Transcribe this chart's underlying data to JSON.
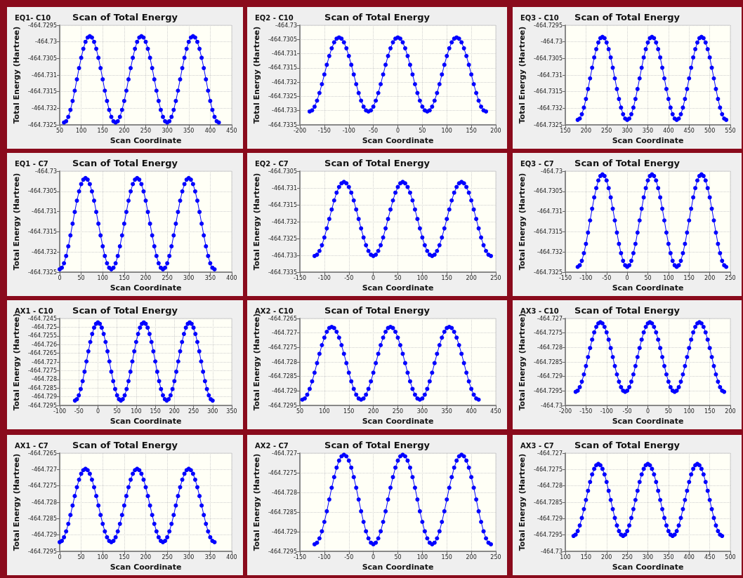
{
  "chart_data": [
    {
      "type": "line",
      "subtitle": "EQ1- C10",
      "title": "Scan of Total Energy",
      "xlabel": "Scan Coordinate",
      "ylabel": "Total Energy (Hartree)",
      "color": "#0000ff",
      "marker": "circle",
      "line_style": "solid",
      "grid": true,
      "xlim": [
        50,
        450
      ],
      "xticks": [
        50,
        100,
        150,
        200,
        250,
        300,
        350,
        400,
        450
      ],
      "ylim": [
        -464.7325,
        -464.7295
      ],
      "yticks": [
        -464.7325,
        -464.732,
        -464.7315,
        -464.731,
        -464.7305,
        -464.73,
        -464.7295
      ],
      "x": [
        60,
        65,
        70,
        75,
        80,
        85,
        90,
        95,
        100,
        105,
        110,
        115,
        120,
        125,
        130,
        135,
        140,
        145,
        150,
        155,
        160,
        165,
        170,
        175,
        180,
        185,
        190,
        195,
        200,
        205,
        210,
        215,
        220,
        225,
        230,
        235,
        240,
        245,
        250,
        255,
        260,
        265,
        270,
        275,
        280,
        285,
        290,
        295,
        300,
        305,
        310,
        315,
        320,
        325,
        330,
        335,
        340,
        345,
        350,
        355,
        360,
        365,
        370,
        375,
        380,
        385,
        390,
        395,
        400,
        405,
        410,
        415,
        420
      ],
      "values": [
        -464.73243,
        -464.73239,
        -464.73226,
        -464.73205,
        -464.73178,
        -464.73147,
        -464.73113,
        -464.73079,
        -464.73048,
        -464.73021,
        -464.73,
        -464.72987,
        -464.72983,
        -464.72987,
        -464.73,
        -464.73021,
        -464.73048,
        -464.73079,
        -464.73113,
        -464.73147,
        -464.73178,
        -464.73205,
        -464.73226,
        -464.73239,
        -464.73243,
        -464.73239,
        -464.73226,
        -464.73205,
        -464.73178,
        -464.73147,
        -464.73113,
        -464.73079,
        -464.73048,
        -464.73021,
        -464.73,
        -464.72987,
        -464.72983,
        -464.72987,
        -464.73,
        -464.73021,
        -464.73048,
        -464.73079,
        -464.73113,
        -464.73147,
        -464.73178,
        -464.73205,
        -464.73226,
        -464.73239,
        -464.73243,
        -464.73239,
        -464.73226,
        -464.73205,
        -464.73178,
        -464.73147,
        -464.73113,
        -464.73079,
        -464.73048,
        -464.73021,
        -464.73,
        -464.72987,
        -464.72983,
        -464.72987,
        -464.73,
        -464.73021,
        -464.73048,
        -464.73079,
        -464.73113,
        -464.73147,
        -464.73178,
        -464.73205,
        -464.73226,
        -464.73239,
        -464.73243
      ]
    },
    {
      "type": "line",
      "subtitle": "EQ2 - C10",
      "title": "Scan of Total Energy",
      "xlabel": "Scan Coordinate",
      "ylabel": "Total Energy (Hartree)",
      "color": "#0000ff",
      "marker": "circle",
      "line_style": "solid",
      "grid": true,
      "xlim": [
        -200,
        200
      ],
      "xticks": [
        -200,
        -150,
        -100,
        -50,
        0,
        50,
        100,
        150,
        200
      ],
      "ylim": [
        -464.7335,
        -464.73
      ],
      "yticks": [
        -464.7335,
        -464.733,
        -464.7325,
        -464.732,
        -464.7315,
        -464.731,
        -464.7305,
        -464.73
      ],
      "x": [
        -180,
        -175,
        -170,
        -165,
        -160,
        -155,
        -150,
        -145,
        -140,
        -135,
        -130,
        -125,
        -120,
        -115,
        -110,
        -105,
        -100,
        -95,
        -90,
        -85,
        -80,
        -75,
        -70,
        -65,
        -60,
        -55,
        -50,
        -45,
        -40,
        -35,
        -30,
        -25,
        -20,
        -15,
        -10,
        -5,
        0,
        5,
        10,
        15,
        20,
        25,
        30,
        35,
        40,
        45,
        50,
        55,
        60,
        65,
        70,
        75,
        80,
        85,
        90,
        95,
        100,
        105,
        110,
        115,
        120,
        125,
        130,
        135,
        140,
        145,
        150,
        155,
        160,
        165,
        170,
        175,
        180
      ],
      "values": [
        -464.73303,
        -464.73299,
        -464.73286,
        -464.73265,
        -464.73238,
        -464.73207,
        -464.73173,
        -464.73139,
        -464.73108,
        -464.73081,
        -464.7306,
        -464.73047,
        -464.73043,
        -464.73047,
        -464.7306,
        -464.73081,
        -464.73108,
        -464.73139,
        -464.73173,
        -464.73207,
        -464.73238,
        -464.73265,
        -464.73286,
        -464.73299,
        -464.73303,
        -464.73299,
        -464.73286,
        -464.73265,
        -464.73238,
        -464.73207,
        -464.73173,
        -464.73139,
        -464.73108,
        -464.73081,
        -464.7306,
        -464.73047,
        -464.73043,
        -464.73047,
        -464.7306,
        -464.73081,
        -464.73108,
        -464.73139,
        -464.73173,
        -464.73207,
        -464.73238,
        -464.73265,
        -464.73286,
        -464.73299,
        -464.73303,
        -464.73299,
        -464.73286,
        -464.73265,
        -464.73238,
        -464.73207,
        -464.73173,
        -464.73139,
        -464.73108,
        -464.73081,
        -464.7306,
        -464.73047,
        -464.73043,
        -464.73047,
        -464.7306,
        -464.73081,
        -464.73108,
        -464.73139,
        -464.73173,
        -464.73207,
        -464.73238,
        -464.73265,
        -464.73286,
        -464.73299,
        -464.73303
      ]
    },
    {
      "type": "line",
      "subtitle": "EQ3 - C10",
      "title": "Scan of Total Energy",
      "xlabel": "Scan Coordinate",
      "ylabel": "Total Energy (Hartree)",
      "color": "#0000ff",
      "marker": "circle",
      "line_style": "solid",
      "grid": true,
      "xlim": [
        150,
        550
      ],
      "xticks": [
        150,
        200,
        250,
        300,
        350,
        400,
        450,
        500,
        550
      ],
      "ylim": [
        -464.7325,
        -464.7295
      ],
      "yticks": [
        -464.7325,
        -464.732,
        -464.7315,
        -464.731,
        -464.7305,
        -464.73,
        -464.7295
      ],
      "x": [
        180,
        185,
        190,
        195,
        200,
        205,
        210,
        215,
        220,
        225,
        230,
        235,
        240,
        245,
        250,
        255,
        260,
        265,
        270,
        275,
        280,
        285,
        290,
        295,
        300,
        305,
        310,
        315,
        320,
        325,
        330,
        335,
        340,
        345,
        350,
        355,
        360,
        365,
        370,
        375,
        380,
        385,
        390,
        395,
        400,
        405,
        410,
        415,
        420,
        425,
        430,
        435,
        440,
        445,
        450,
        455,
        460,
        465,
        470,
        475,
        480,
        485,
        490,
        495,
        500,
        505,
        510,
        515,
        520,
        525,
        530,
        535,
        540
      ],
      "values": [
        -464.73235,
        -464.73231,
        -464.73218,
        -464.73198,
        -464.73172,
        -464.73142,
        -464.7311,
        -464.73078,
        -464.73047,
        -464.73022,
        -464.73002,
        -464.72989,
        -464.72985,
        -464.72989,
        -464.73002,
        -464.73022,
        -464.73047,
        -464.73078,
        -464.7311,
        -464.73142,
        -464.73172,
        -464.73198,
        -464.73218,
        -464.73231,
        -464.73235,
        -464.73231,
        -464.73218,
        -464.73198,
        -464.73172,
        -464.73142,
        -464.7311,
        -464.73078,
        -464.73047,
        -464.73022,
        -464.73002,
        -464.72989,
        -464.72985,
        -464.72989,
        -464.73002,
        -464.73022,
        -464.73047,
        -464.73078,
        -464.7311,
        -464.73142,
        -464.73172,
        -464.73198,
        -464.73218,
        -464.73231,
        -464.73235,
        -464.73231,
        -464.73218,
        -464.73198,
        -464.73172,
        -464.73142,
        -464.7311,
        -464.73078,
        -464.73047,
        -464.73022,
        -464.73002,
        -464.72989,
        -464.72985,
        -464.72989,
        -464.73002,
        -464.73022,
        -464.73047,
        -464.73078,
        -464.7311,
        -464.73142,
        -464.73172,
        -464.73198,
        -464.73218,
        -464.73231,
        -464.73235
      ]
    },
    {
      "type": "line",
      "subtitle": "EQ1 - C7",
      "title": "Scan of Total Energy",
      "xlabel": "Scan Coordinate",
      "ylabel": "Total Energy (Hartree)",
      "color": "#0000ff",
      "marker": "circle",
      "line_style": "solid",
      "grid": true,
      "xlim": [
        0,
        400
      ],
      "xticks": [
        0,
        50,
        100,
        150,
        200,
        250,
        300,
        350,
        400
      ],
      "ylim": [
        -464.7325,
        -464.73
      ],
      "yticks": [
        -464.7325,
        -464.732,
        -464.7315,
        -464.731,
        -464.7305,
        -464.73
      ],
      "x": [
        0,
        5,
        10,
        15,
        20,
        25,
        30,
        35,
        40,
        45,
        50,
        55,
        60,
        65,
        70,
        75,
        80,
        85,
        90,
        95,
        100,
        105,
        110,
        115,
        120,
        125,
        130,
        135,
        140,
        145,
        150,
        155,
        160,
        165,
        170,
        175,
        180,
        185,
        190,
        195,
        200,
        205,
        210,
        215,
        220,
        225,
        230,
        235,
        240,
        245,
        250,
        255,
        260,
        265,
        270,
        275,
        280,
        285,
        290,
        295,
        300,
        305,
        310,
        315,
        320,
        325,
        330,
        335,
        340,
        345,
        350,
        355,
        360
      ],
      "values": [
        -464.73243,
        -464.73239,
        -464.73228,
        -464.7321,
        -464.73186,
        -464.73159,
        -464.7313,
        -464.73101,
        -464.73073,
        -464.7305,
        -464.73032,
        -464.73021,
        -464.73017,
        -464.73021,
        -464.73032,
        -464.7305,
        -464.73073,
        -464.73101,
        -464.7313,
        -464.73159,
        -464.73186,
        -464.7321,
        -464.73228,
        -464.73239,
        -464.73243,
        -464.73239,
        -464.73228,
        -464.7321,
        -464.73186,
        -464.73159,
        -464.7313,
        -464.73101,
        -464.73073,
        -464.7305,
        -464.73032,
        -464.73021,
        -464.73017,
        -464.73021,
        -464.73032,
        -464.7305,
        -464.73073,
        -464.73101,
        -464.7313,
        -464.73159,
        -464.73186,
        -464.7321,
        -464.73228,
        -464.73239,
        -464.73243,
        -464.73239,
        -464.73228,
        -464.7321,
        -464.73186,
        -464.73159,
        -464.7313,
        -464.73101,
        -464.73073,
        -464.7305,
        -464.73032,
        -464.73021,
        -464.73017,
        -464.73021,
        -464.73032,
        -464.7305,
        -464.73073,
        -464.73101,
        -464.7313,
        -464.73159,
        -464.73186,
        -464.7321,
        -464.73228,
        -464.73239,
        -464.73243
      ]
    },
    {
      "type": "line",
      "subtitle": "EQ2 - C7",
      "title": "Scan of Total Energy",
      "xlabel": "Scan Coordinate",
      "ylabel": "Total Energy (Hartree)",
      "color": "#0000ff",
      "marker": "circle",
      "line_style": "solid",
      "grid": true,
      "xlim": [
        -150,
        250
      ],
      "xticks": [
        -150,
        -100,
        -50,
        0,
        50,
        100,
        150,
        200,
        250
      ],
      "ylim": [
        -464.7335,
        -464.7305
      ],
      "yticks": [
        -464.7335,
        -464.733,
        -464.7325,
        -464.732,
        -464.7315,
        -464.731,
        -464.7305
      ],
      "x": [
        -120,
        -115,
        -110,
        -105,
        -100,
        -95,
        -90,
        -85,
        -80,
        -75,
        -70,
        -65,
        -60,
        -55,
        -50,
        -45,
        -40,
        -35,
        -30,
        -25,
        -20,
        -15,
        -10,
        -5,
        0,
        5,
        10,
        15,
        20,
        25,
        30,
        35,
        40,
        45,
        50,
        55,
        60,
        65,
        70,
        75,
        80,
        85,
        90,
        95,
        100,
        105,
        110,
        115,
        120,
        125,
        130,
        135,
        140,
        145,
        150,
        155,
        160,
        165,
        170,
        175,
        180,
        185,
        190,
        195,
        200,
        205,
        210,
        215,
        220,
        225,
        230,
        235,
        240
      ],
      "values": [
        -464.73302,
        -464.73298,
        -464.73287,
        -464.7327,
        -464.73247,
        -464.7322,
        -464.73192,
        -464.73164,
        -464.73137,
        -464.73114,
        -464.73097,
        -464.73086,
        -464.73082,
        -464.73086,
        -464.73097,
        -464.73114,
        -464.73137,
        -464.73164,
        -464.73192,
        -464.7322,
        -464.73247,
        -464.7327,
        -464.73287,
        -464.73298,
        -464.73302,
        -464.73298,
        -464.73287,
        -464.7327,
        -464.73247,
        -464.7322,
        -464.73192,
        -464.73164,
        -464.73137,
        -464.73114,
        -464.73097,
        -464.73086,
        -464.73082,
        -464.73086,
        -464.73097,
        -464.73114,
        -464.73137,
        -464.73164,
        -464.73192,
        -464.7322,
        -464.73247,
        -464.7327,
        -464.73287,
        -464.73298,
        -464.73302,
        -464.73298,
        -464.73287,
        -464.7327,
        -464.73247,
        -464.7322,
        -464.73192,
        -464.73164,
        -464.73137,
        -464.73114,
        -464.73097,
        -464.73086,
        -464.73082,
        -464.73086,
        -464.73097,
        -464.73114,
        -464.73137,
        -464.73164,
        -464.73192,
        -464.7322,
        -464.73247,
        -464.7327,
        -464.73287,
        -464.73298,
        -464.73302
      ]
    },
    {
      "type": "line",
      "subtitle": "EQ3 - C7",
      "title": "Scan of Total Energy",
      "xlabel": "Scan Coordinate",
      "ylabel": "Total Energy (Hartree)",
      "color": "#0000ff",
      "marker": "circle",
      "line_style": "solid",
      "grid": true,
      "xlim": [
        -150,
        250
      ],
      "xticks": [
        -150,
        -100,
        -50,
        0,
        50,
        100,
        150,
        200,
        250
      ],
      "ylim": [
        -464.7325,
        -464.73
      ],
      "yticks": [
        -464.7325,
        -464.732,
        -464.7315,
        -464.731,
        -464.7305,
        -464.73
      ],
      "x": [
        -120,
        -115,
        -110,
        -105,
        -100,
        -95,
        -90,
        -85,
        -80,
        -75,
        -70,
        -65,
        -60,
        -55,
        -50,
        -45,
        -40,
        -35,
        -30,
        -25,
        -20,
        -15,
        -10,
        -5,
        0,
        5,
        10,
        15,
        20,
        25,
        30,
        35,
        40,
        45,
        50,
        55,
        60,
        65,
        70,
        75,
        80,
        85,
        90,
        95,
        100,
        105,
        110,
        115,
        120,
        125,
        130,
        135,
        140,
        145,
        150,
        155,
        160,
        165,
        170,
        175,
        180,
        185,
        190,
        195,
        200,
        205,
        210,
        215,
        220,
        225,
        230,
        235,
        240
      ],
      "values": [
        -464.73237,
        -464.73233,
        -464.73222,
        -464.73203,
        -464.7318,
        -464.73152,
        -464.73122,
        -464.73093,
        -464.73065,
        -464.73042,
        -464.73023,
        -464.73012,
        -464.73008,
        -464.73012,
        -464.73023,
        -464.73042,
        -464.73065,
        -464.73093,
        -464.73122,
        -464.73152,
        -464.7318,
        -464.73203,
        -464.73222,
        -464.73233,
        -464.73237,
        -464.73233,
        -464.73222,
        -464.73203,
        -464.7318,
        -464.73152,
        -464.73122,
        -464.73093,
        -464.73065,
        -464.73042,
        -464.73023,
        -464.73012,
        -464.73008,
        -464.73012,
        -464.73023,
        -464.73042,
        -464.73065,
        -464.73093,
        -464.73122,
        -464.73152,
        -464.7318,
        -464.73203,
        -464.73222,
        -464.73233,
        -464.73237,
        -464.73233,
        -464.73222,
        -464.73203,
        -464.7318,
        -464.73152,
        -464.73122,
        -464.73093,
        -464.73065,
        -464.73042,
        -464.73023,
        -464.73012,
        -464.73008,
        -464.73012,
        -464.73023,
        -464.73042,
        -464.73065,
        -464.73093,
        -464.73122,
        -464.73152,
        -464.7318,
        -464.73203,
        -464.73222,
        -464.73233,
        -464.73237
      ]
    },
    {
      "type": "line",
      "subtitle": "AX1 - C10",
      "title": "Scan of Total Energy",
      "xlabel": "Scan Coordinate",
      "ylabel": "Total Energy (Hartree)",
      "color": "#0000ff",
      "marker": "circle",
      "line_style": "solid",
      "grid": true,
      "xlim": [
        -100,
        350
      ],
      "xticks": [
        -100,
        -50,
        0,
        50,
        100,
        150,
        200,
        250,
        300,
        350
      ],
      "ylim": [
        -464.7295,
        -464.7245
      ],
      "yticks": [
        -464.7295,
        -464.729,
        -464.7285,
        -464.728,
        -464.7275,
        -464.727,
        -464.7265,
        -464.726,
        -464.7255,
        -464.725,
        -464.7245
      ],
      "x": [
        -60,
        -55,
        -50,
        -45,
        -40,
        -35,
        -30,
        -25,
        -20,
        -15,
        -10,
        -5,
        0,
        5,
        10,
        15,
        20,
        25,
        30,
        35,
        40,
        45,
        50,
        55,
        60,
        65,
        70,
        75,
        80,
        85,
        90,
        95,
        100,
        105,
        110,
        115,
        120,
        125,
        130,
        135,
        140,
        145,
        150,
        155,
        160,
        165,
        170,
        175,
        180,
        185,
        190,
        195,
        200,
        205,
        210,
        215,
        220,
        225,
        230,
        235,
        240,
        245,
        250,
        255,
        260,
        265,
        270,
        275,
        280,
        285,
        290,
        295,
        300
      ],
      "values": [
        -464.72922,
        -464.72914,
        -464.72892,
        -464.72856,
        -464.7281,
        -464.72756,
        -464.72697,
        -464.72639,
        -464.72585,
        -464.72539,
        -464.72503,
        -464.72481,
        -464.72473,
        -464.72481,
        -464.72503,
        -464.72539,
        -464.72585,
        -464.72639,
        -464.72697,
        -464.72756,
        -464.7281,
        -464.72856,
        -464.72892,
        -464.72914,
        -464.72922,
        -464.72914,
        -464.72892,
        -464.72856,
        -464.7281,
        -464.72756,
        -464.72697,
        -464.72639,
        -464.72585,
        -464.72539,
        -464.72503,
        -464.72481,
        -464.72473,
        -464.72481,
        -464.72503,
        -464.72539,
        -464.72585,
        -464.72639,
        -464.72697,
        -464.72756,
        -464.7281,
        -464.72856,
        -464.72892,
        -464.72914,
        -464.72922,
        -464.72914,
        -464.72892,
        -464.72856,
        -464.7281,
        -464.72756,
        -464.72697,
        -464.72639,
        -464.72585,
        -464.72539,
        -464.72503,
        -464.72481,
        -464.72473,
        -464.72481,
        -464.72503,
        -464.72539,
        -464.72585,
        -464.72639,
        -464.72697,
        -464.72756,
        -464.7281,
        -464.72856,
        -464.72892,
        -464.72914,
        -464.72922
      ]
    },
    {
      "type": "line",
      "subtitle": "AX2 - C10",
      "title": "Scan of Total Energy",
      "xlabel": "Scan Coordinate",
      "ylabel": "Total Energy (Hartree)",
      "color": "#0000ff",
      "marker": "circle",
      "line_style": "solid",
      "grid": true,
      "xlim": [
        50,
        450
      ],
      "xticks": [
        50,
        100,
        150,
        200,
        250,
        300,
        350,
        400,
        450
      ],
      "ylim": [
        -464.7295,
        -464.7265
      ],
      "yticks": [
        -464.7295,
        -464.729,
        -464.7285,
        -464.728,
        -464.7275,
        -464.727,
        -464.7265
      ],
      "x": [
        55,
        60,
        65,
        70,
        75,
        80,
        85,
        90,
        95,
        100,
        105,
        110,
        115,
        120,
        125,
        130,
        135,
        140,
        145,
        150,
        155,
        160,
        165,
        170,
        175,
        180,
        185,
        190,
        195,
        200,
        205,
        210,
        215,
        220,
        225,
        230,
        235,
        240,
        245,
        250,
        255,
        260,
        265,
        270,
        275,
        280,
        285,
        290,
        295,
        300,
        305,
        310,
        315,
        320,
        325,
        330,
        335,
        340,
        345,
        350,
        355,
        360,
        365,
        370,
        375,
        380,
        385,
        390,
        395,
        400,
        405,
        410,
        415
      ],
      "values": [
        -464.7293,
        -464.72926,
        -464.72913,
        -464.72893,
        -464.72867,
        -464.72837,
        -464.72804,
        -464.72772,
        -464.72742,
        -464.72716,
        -464.72696,
        -464.72683,
        -464.72679,
        -464.72683,
        -464.72696,
        -464.72716,
        -464.72742,
        -464.72772,
        -464.72804,
        -464.72837,
        -464.72867,
        -464.72893,
        -464.72913,
        -464.72926,
        -464.7293,
        -464.72926,
        -464.72913,
        -464.72893,
        -464.72867,
        -464.72837,
        -464.72804,
        -464.72772,
        -464.72742,
        -464.72716,
        -464.72696,
        -464.72683,
        -464.72679,
        -464.72683,
        -464.72696,
        -464.72716,
        -464.72742,
        -464.72772,
        -464.72804,
        -464.72837,
        -464.72867,
        -464.72893,
        -464.72913,
        -464.72926,
        -464.7293,
        -464.72926,
        -464.72913,
        -464.72893,
        -464.72867,
        -464.72837,
        -464.72804,
        -464.72772,
        -464.72742,
        -464.72716,
        -464.72696,
        -464.72683,
        -464.72679,
        -464.72683,
        -464.72696,
        -464.72716,
        -464.72742,
        -464.72772,
        -464.72804,
        -464.72837,
        -464.72867,
        -464.72893,
        -464.72913,
        -464.72926,
        -464.7293
      ]
    },
    {
      "type": "line",
      "subtitle": "AX3 - C10",
      "title": "Scan of Total Energy",
      "xlabel": "Scan Coordinate",
      "ylabel": "Total Energy (Hartree)",
      "color": "#0000ff",
      "marker": "circle",
      "line_style": "solid",
      "grid": true,
      "xlim": [
        -200,
        200
      ],
      "xticks": [
        -200,
        -150,
        -100,
        -50,
        0,
        50,
        100,
        150,
        200
      ],
      "ylim": [
        -464.73,
        -464.727
      ],
      "yticks": [
        -464.73,
        -464.7295,
        -464.729,
        -464.7285,
        -464.728,
        -464.7275,
        -464.727
      ],
      "x": [
        -175,
        -170,
        -165,
        -160,
        -155,
        -150,
        -145,
        -140,
        -135,
        -130,
        -125,
        -120,
        -115,
        -110,
        -105,
        -100,
        -95,
        -90,
        -85,
        -80,
        -75,
        -70,
        -65,
        -60,
        -55,
        -50,
        -45,
        -40,
        -35,
        -30,
        -25,
        -20,
        -15,
        -10,
        -5,
        0,
        5,
        10,
        15,
        20,
        25,
        30,
        35,
        40,
        45,
        50,
        55,
        60,
        65,
        70,
        75,
        80,
        85,
        90,
        95,
        100,
        105,
        110,
        115,
        120,
        125,
        130,
        135,
        140,
        145,
        150,
        155,
        160,
        165,
        170,
        175,
        180,
        185
      ],
      "values": [
        -464.72953,
        -464.72949,
        -464.72937,
        -464.72918,
        -464.72893,
        -464.72864,
        -464.72833,
        -464.72802,
        -464.72773,
        -464.72748,
        -464.72729,
        -464.72717,
        -464.72713,
        -464.72717,
        -464.72729,
        -464.72748,
        -464.72773,
        -464.72802,
        -464.72833,
        -464.72864,
        -464.72893,
        -464.72918,
        -464.72937,
        -464.72949,
        -464.72953,
        -464.72949,
        -464.72937,
        -464.72918,
        -464.72893,
        -464.72864,
        -464.72833,
        -464.72802,
        -464.72773,
        -464.72748,
        -464.72729,
        -464.72717,
        -464.72713,
        -464.72717,
        -464.72729,
        -464.72748,
        -464.72773,
        -464.72802,
        -464.72833,
        -464.72864,
        -464.72893,
        -464.72918,
        -464.72937,
        -464.72949,
        -464.72953,
        -464.72949,
        -464.72937,
        -464.72918,
        -464.72893,
        -464.72864,
        -464.72833,
        -464.72802,
        -464.72773,
        -464.72748,
        -464.72729,
        -464.72717,
        -464.72713,
        -464.72717,
        -464.72729,
        -464.72748,
        -464.72773,
        -464.72802,
        -464.72833,
        -464.72864,
        -464.72893,
        -464.72918,
        -464.72937,
        -464.72949,
        -464.72953
      ]
    },
    {
      "type": "line",
      "subtitle": "AX1 - C7",
      "title": "Scan of Total Energy",
      "xlabel": "Scan Coordinate",
      "ylabel": "Total Energy (Hartree)",
      "color": "#0000ff",
      "marker": "circle",
      "line_style": "solid",
      "grid": true,
      "xlim": [
        0,
        400
      ],
      "xticks": [
        0,
        50,
        100,
        150,
        200,
        250,
        300,
        350,
        400
      ],
      "ylim": [
        -464.7295,
        -464.7265
      ],
      "yticks": [
        -464.7295,
        -464.729,
        -464.7285,
        -464.728,
        -464.7275,
        -464.727,
        -464.7265
      ],
      "x": [
        0,
        5,
        10,
        15,
        20,
        25,
        30,
        35,
        40,
        45,
        50,
        55,
        60,
        65,
        70,
        75,
        80,
        85,
        90,
        95,
        100,
        105,
        110,
        115,
        120,
        125,
        130,
        135,
        140,
        145,
        150,
        155,
        160,
        165,
        170,
        175,
        180,
        185,
        190,
        195,
        200,
        205,
        210,
        215,
        220,
        225,
        230,
        235,
        240,
        245,
        250,
        255,
        260,
        265,
        270,
        275,
        280,
        285,
        290,
        295,
        300,
        305,
        310,
        315,
        320,
        325,
        330,
        335,
        340,
        345,
        350,
        355,
        360
      ],
      "values": [
        -464.72922,
        -464.72918,
        -464.72907,
        -464.72889,
        -464.72866,
        -464.72839,
        -464.7281,
        -464.72781,
        -464.72754,
        -464.72731,
        -464.72713,
        -464.72702,
        -464.72698,
        -464.72702,
        -464.72713,
        -464.72731,
        -464.72754,
        -464.72781,
        -464.7281,
        -464.72839,
        -464.72866,
        -464.72889,
        -464.72907,
        -464.72918,
        -464.72922,
        -464.72918,
        -464.72907,
        -464.72889,
        -464.72866,
        -464.72839,
        -464.7281,
        -464.72781,
        -464.72754,
        -464.72731,
        -464.72713,
        -464.72702,
        -464.72698,
        -464.72702,
        -464.72713,
        -464.72731,
        -464.72754,
        -464.72781,
        -464.7281,
        -464.72839,
        -464.72866,
        -464.72889,
        -464.72907,
        -464.72918,
        -464.72922,
        -464.72918,
        -464.72907,
        -464.72889,
        -464.72866,
        -464.72839,
        -464.7281,
        -464.72781,
        -464.72754,
        -464.72731,
        -464.72713,
        -464.72702,
        -464.72698,
        -464.72702,
        -464.72713,
        -464.72731,
        -464.72754,
        -464.72781,
        -464.7281,
        -464.72839,
        -464.72866,
        -464.72889,
        -464.72907,
        -464.72918,
        -464.72922
      ]
    },
    {
      "type": "line",
      "subtitle": "AX2 - C7",
      "title": "Scan of Total Energy",
      "xlabel": "Scan Coordinate",
      "ylabel": "Total Energy (Hartree)",
      "color": "#0000ff",
      "marker": "circle",
      "line_style": "solid",
      "grid": true,
      "xlim": [
        -150,
        250
      ],
      "xticks": [
        -150,
        -100,
        -50,
        0,
        50,
        100,
        150,
        200,
        250
      ],
      "ylim": [
        -464.7295,
        -464.727
      ],
      "yticks": [
        -464.7295,
        -464.729,
        -464.7285,
        -464.728,
        -464.7275,
        -464.727
      ],
      "x": [
        -120,
        -115,
        -110,
        -105,
        -100,
        -95,
        -90,
        -85,
        -80,
        -75,
        -70,
        -65,
        -60,
        -55,
        -50,
        -45,
        -40,
        -35,
        -30,
        -25,
        -20,
        -15,
        -10,
        -5,
        0,
        5,
        10,
        15,
        20,
        25,
        30,
        35,
        40,
        45,
        50,
        55,
        60,
        65,
        70,
        75,
        80,
        85,
        90,
        95,
        100,
        105,
        110,
        115,
        120,
        125,
        130,
        135,
        140,
        145,
        150,
        155,
        160,
        165,
        170,
        175,
        180,
        185,
        190,
        195,
        200,
        205,
        210,
        215,
        220,
        225,
        230,
        235,
        240
      ],
      "values": [
        -464.72932,
        -464.72928,
        -464.72917,
        -464.72899,
        -464.72875,
        -464.72848,
        -464.72818,
        -464.72788,
        -464.72761,
        -464.72737,
        -464.72719,
        -464.72708,
        -464.72704,
        -464.72708,
        -464.72719,
        -464.72737,
        -464.72761,
        -464.72788,
        -464.72818,
        -464.72848,
        -464.72875,
        -464.72899,
        -464.72917,
        -464.72928,
        -464.72932,
        -464.72928,
        -464.72917,
        -464.72899,
        -464.72875,
        -464.72848,
        -464.72818,
        -464.72788,
        -464.72761,
        -464.72737,
        -464.72719,
        -464.72708,
        -464.72704,
        -464.72708,
        -464.72719,
        -464.72737,
        -464.72761,
        -464.72788,
        -464.72818,
        -464.72848,
        -464.72875,
        -464.72899,
        -464.72917,
        -464.72928,
        -464.72932,
        -464.72928,
        -464.72917,
        -464.72899,
        -464.72875,
        -464.72848,
        -464.72818,
        -464.72788,
        -464.72761,
        -464.72737,
        -464.72719,
        -464.72708,
        -464.72704,
        -464.72708,
        -464.72719,
        -464.72737,
        -464.72761,
        -464.72788,
        -464.72818,
        -464.72848,
        -464.72875,
        -464.72899,
        -464.72917,
        -464.72928,
        -464.72932
      ]
    },
    {
      "type": "line",
      "subtitle": "AX3 - C7",
      "title": "Scan of Total Energy",
      "xlabel": "Scan Coordinate",
      "ylabel": "Total Energy (Hartree)",
      "color": "#0000ff",
      "marker": "circle",
      "line_style": "solid",
      "grid": true,
      "xlim": [
        100,
        500
      ],
      "xticks": [
        100,
        150,
        200,
        250,
        300,
        350,
        400,
        450,
        500
      ],
      "ylim": [
        -464.73,
        -464.727
      ],
      "yticks": [
        -464.73,
        -464.7295,
        -464.729,
        -464.7285,
        -464.728,
        -464.7275,
        -464.727
      ],
      "x": [
        120,
        125,
        130,
        135,
        140,
        145,
        150,
        155,
        160,
        165,
        170,
        175,
        180,
        185,
        190,
        195,
        200,
        205,
        210,
        215,
        220,
        225,
        230,
        235,
        240,
        245,
        250,
        255,
        260,
        265,
        270,
        275,
        280,
        285,
        290,
        295,
        300,
        305,
        310,
        315,
        320,
        325,
        330,
        335,
        340,
        345,
        350,
        355,
        360,
        365,
        370,
        375,
        380,
        385,
        390,
        395,
        400,
        405,
        410,
        415,
        420,
        425,
        430,
        435,
        440,
        445,
        450,
        455,
        460,
        465,
        470,
        475,
        480
      ],
      "values": [
        -464.72953,
        -464.72949,
        -464.72938,
        -464.72921,
        -464.72898,
        -464.72871,
        -464.72843,
        -464.72815,
        -464.72788,
        -464.72765,
        -464.72748,
        -464.72737,
        -464.72733,
        -464.72737,
        -464.72748,
        -464.72765,
        -464.72788,
        -464.72815,
        -464.72843,
        -464.72871,
        -464.72898,
        -464.72921,
        -464.72938,
        -464.72949,
        -464.72953,
        -464.72949,
        -464.72938,
        -464.72921,
        -464.72898,
        -464.72871,
        -464.72843,
        -464.72815,
        -464.72788,
        -464.72765,
        -464.72748,
        -464.72737,
        -464.72733,
        -464.72737,
        -464.72748,
        -464.72765,
        -464.72788,
        -464.72815,
        -464.72843,
        -464.72871,
        -464.72898,
        -464.72921,
        -464.72938,
        -464.72949,
        -464.72953,
        -464.72949,
        -464.72938,
        -464.72921,
        -464.72898,
        -464.72871,
        -464.72843,
        -464.72815,
        -464.72788,
        -464.72765,
        -464.72748,
        -464.72737,
        -464.72733,
        -464.72737,
        -464.72748,
        -464.72765,
        -464.72788,
        -464.72815,
        -464.72843,
        -464.72871,
        -464.72898,
        -464.72921,
        -464.72938,
        -464.72949,
        -464.72953
      ]
    }
  ]
}
